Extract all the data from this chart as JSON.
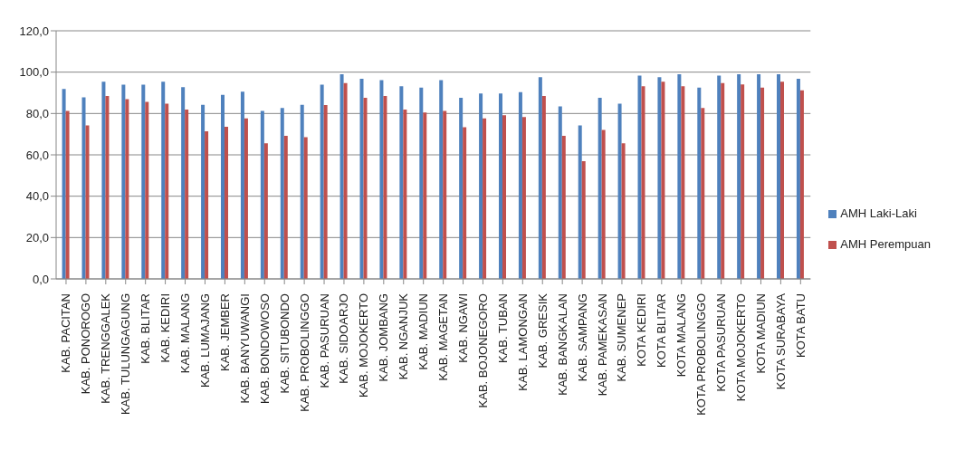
{
  "chart_data": {
    "type": "bar",
    "categories": [
      "KAB. PACITAN",
      "KAB. PONOROGO",
      "KAB. TRENGGALEK",
      "KAB. TULUNGAGUNG",
      "KAB. BLITAR",
      "KAB. KEDIRI",
      "KAB. MALANG",
      "KAB. LUMAJANG",
      "KAB. JEMBER",
      "KAB. BANYUWANGI",
      "KAB. BONDOWOSO",
      "KAB. SITUBONDO",
      "KAB. PROBOLINGGO",
      "KAB. PASURUAN",
      "KAB. SIDOARJO",
      "KAB. MOJOKERTO",
      "KAB. JOMBANG",
      "KAB. NGANJUK",
      "KAB. MADIUN",
      "KAB. MAGETAN",
      "KAB. NGAWI",
      "KAB. BOJONEGORO",
      "KAB. TUBAN",
      "KAB. LAMONGAN",
      "KAB. GRESIK",
      "KAB. BANGKALAN",
      "KAB. SAMPANG",
      "KAB. PAMEKASAN",
      "KAB. SUMENEP",
      "KOTA KEDIRI",
      "KOTA BLITAR",
      "KOTA MALANG",
      "KOTA PROBOLINGGO",
      "KOTA PASURUAN",
      "KOTA MOJOKERTO",
      "KOTA MADIUN",
      "KOTA SURABAYA",
      "KOTA BATU"
    ],
    "series": [
      {
        "name": "AMH Laki-Laki",
        "color": "#4f81bd",
        "values": [
          91.9,
          87.8,
          95.4,
          93.9,
          93.9,
          95.4,
          92.7,
          84.2,
          89.0,
          90.5,
          81.2,
          82.7,
          84.2,
          93.9,
          99.0,
          96.8,
          96.1,
          93.2,
          92.5,
          96.1,
          87.6,
          89.7,
          89.7,
          90.3,
          97.6,
          83.4,
          74.2,
          87.6,
          84.7,
          98.3,
          97.6,
          99.0,
          92.5,
          98.3,
          99.0,
          99.0,
          99.0,
          96.8
        ]
      },
      {
        "name": "AMH Perempuan",
        "color": "#c0504d",
        "values": [
          81.2,
          74.2,
          88.5,
          86.9,
          85.6,
          84.7,
          81.9,
          71.4,
          73.6,
          77.6,
          65.6,
          69.2,
          68.5,
          84.1,
          94.7,
          87.6,
          88.5,
          81.9,
          80.5,
          81.2,
          73.4,
          77.6,
          79.2,
          78.3,
          88.5,
          69.2,
          56.9,
          72.0,
          65.6,
          93.2,
          95.4,
          93.2,
          82.7,
          94.7,
          94.1,
          92.5,
          95.4,
          91.2
        ]
      }
    ],
    "ylim": [
      0,
      120
    ],
    "yticks": [
      {
        "value": 0,
        "label": "0,0"
      },
      {
        "value": 20,
        "label": "20,0"
      },
      {
        "value": 40,
        "label": "40,0"
      },
      {
        "value": 60,
        "label": "60,0"
      },
      {
        "value": 80,
        "label": "80,0"
      },
      {
        "value": 100,
        "label": "100,0"
      },
      {
        "value": 120,
        "label": "120,0"
      }
    ],
    "grid": "y",
    "legend": "right"
  }
}
